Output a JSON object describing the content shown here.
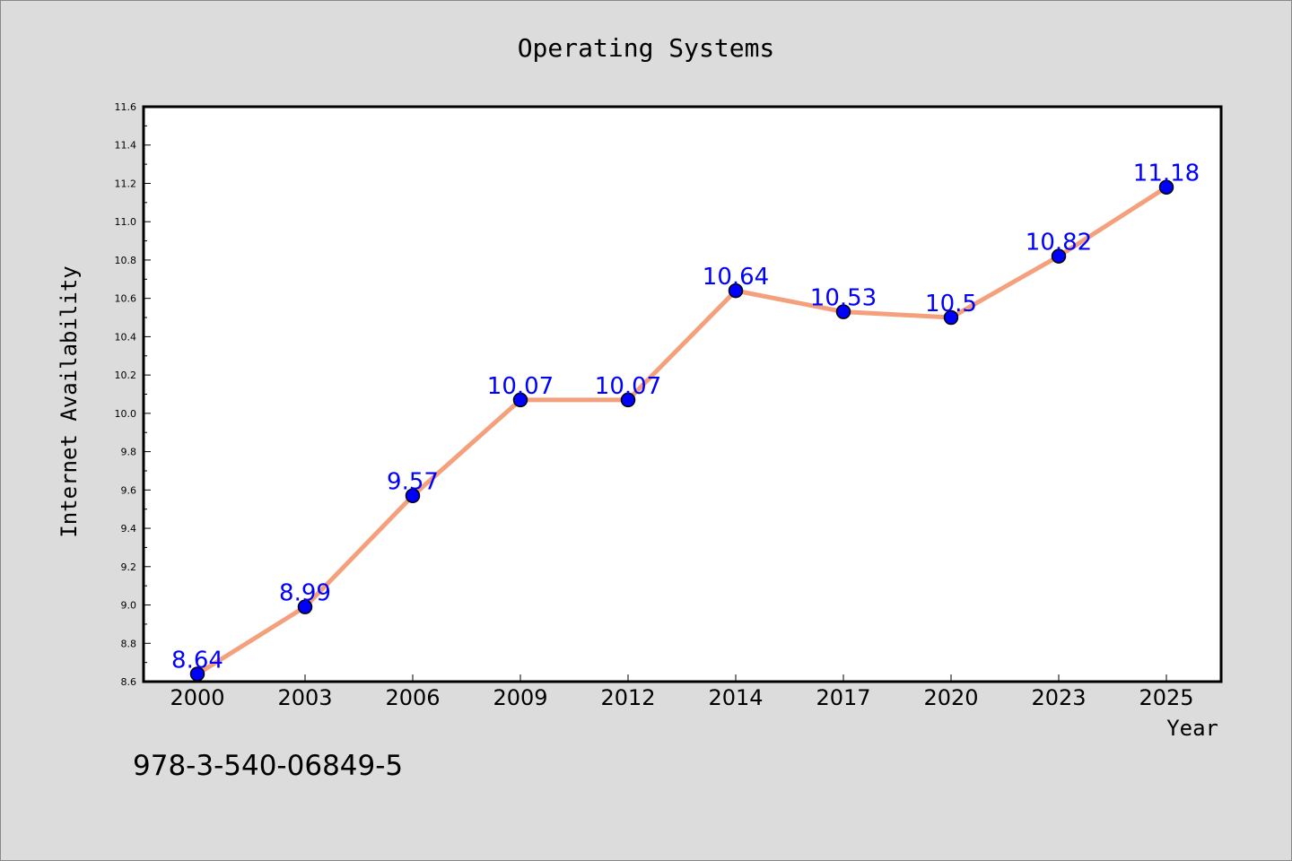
{
  "chart_data": {
    "type": "line",
    "title": "Operating Systems",
    "xlabel": "Year",
    "ylabel": "Internet Availability",
    "categories": [
      "2000",
      "2003",
      "2006",
      "2009",
      "2012",
      "2014",
      "2017",
      "2020",
      "2023",
      "2025"
    ],
    "series": [
      {
        "values": [
          8.64,
          8.99,
          9.57,
          10.07,
          10.07,
          10.64,
          10.53,
          10.5,
          10.82,
          11.18
        ]
      }
    ],
    "data_labels": [
      "8.64",
      "8.99",
      "9.57",
      "10.07",
      "10.07",
      "10.64",
      "10.53",
      "10.5",
      "10.82",
      "11.18"
    ],
    "y_ticks": [
      "8.6",
      "8.8",
      "9.0",
      "9.2",
      "9.4",
      "9.6",
      "9.8",
      "10.0",
      "10.2",
      "10.4",
      "10.6",
      "10.8",
      "11.0",
      "11.2",
      "11.4",
      "11.6"
    ],
    "ylim": [
      8.6,
      11.6
    ],
    "grid": false,
    "legend": "none",
    "line_color": "#f4a07c",
    "marker_color": "#0000ff",
    "label_color": "#0000ff"
  },
  "annotation": {
    "isbn": "978-3-540-06849-5"
  },
  "colors": {
    "background": "#dcdcdc",
    "plot_background": "#ffffff"
  }
}
